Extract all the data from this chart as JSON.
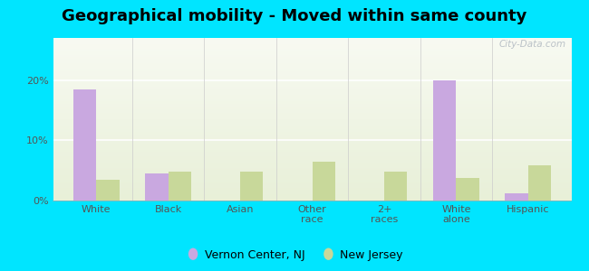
{
  "title": "Geographical mobility - Moved within same county",
  "categories": [
    "White",
    "Black",
    "Asian",
    "Other\nrace",
    "2+\nraces",
    "White\nalone",
    "Hispanic"
  ],
  "vernon_values": [
    18.5,
    4.5,
    0,
    0,
    0,
    20.0,
    1.2
  ],
  "nj_values": [
    3.5,
    4.8,
    4.8,
    6.5,
    4.8,
    3.8,
    5.8
  ],
  "vernon_color": "#c9a8e0",
  "nj_color": "#c8d89a",
  "bar_width": 0.32,
  "ylim": [
    0,
    27
  ],
  "yticks": [
    0,
    10,
    20
  ],
  "ytick_labels": [
    "0%",
    "10%",
    "20%"
  ],
  "background_outer": "#00e5ff",
  "legend_labels": [
    "Vernon Center, NJ",
    "New Jersey"
  ],
  "watermark": "City-Data.com",
  "title_fontsize": 13
}
